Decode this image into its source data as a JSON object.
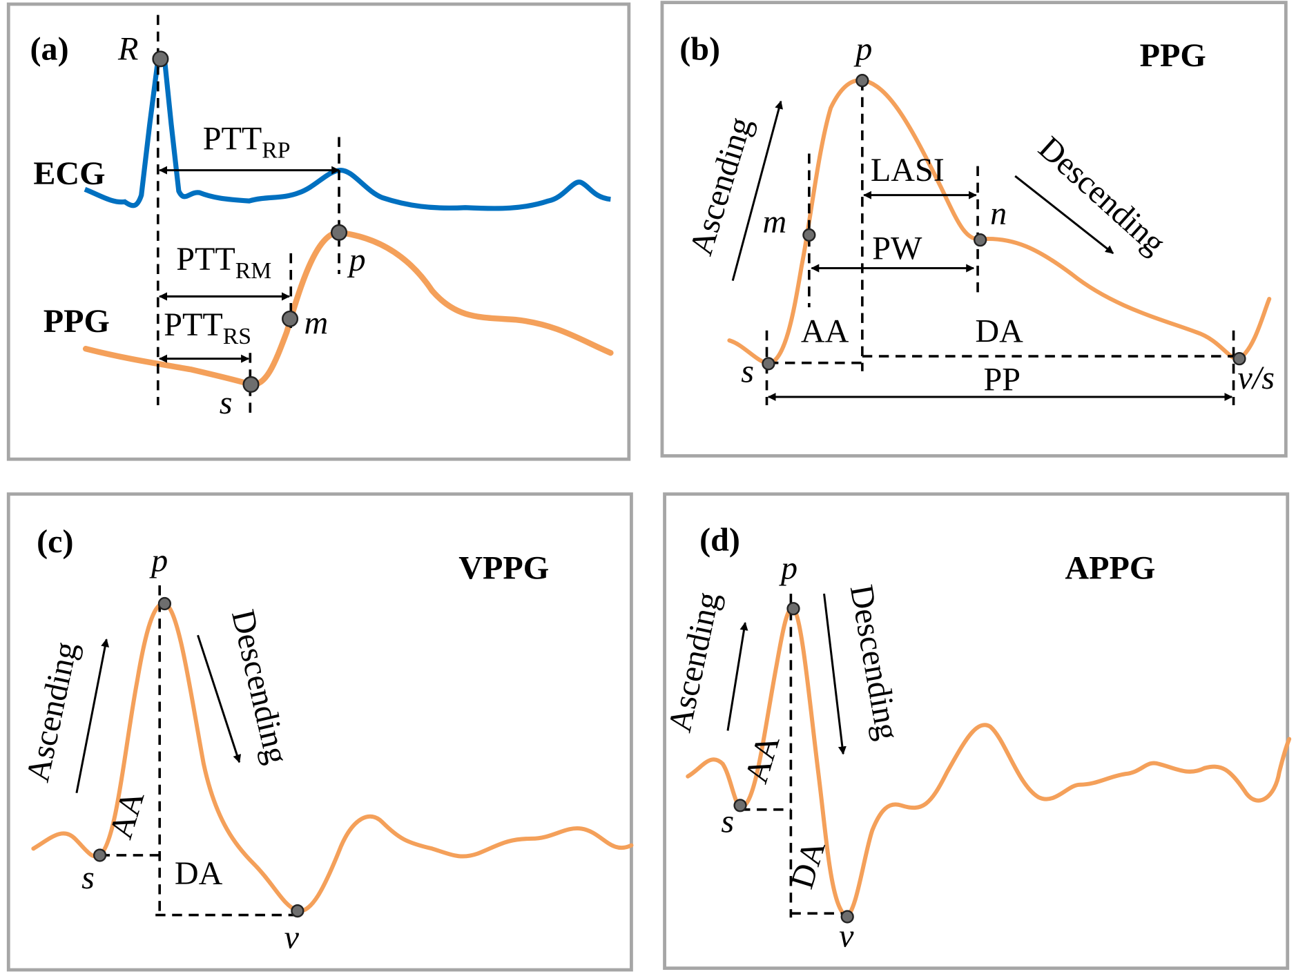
{
  "panels": [
    {
      "label": "(a)",
      "signals": [
        "ECG",
        "PPG"
      ],
      "points": [
        "R",
        "p",
        "m",
        "s"
      ],
      "intervals": [
        {
          "main": "PTT",
          "sub": "RP"
        },
        {
          "main": "PTT",
          "sub": "RM"
        },
        {
          "main": "PTT",
          "sub": "RS"
        }
      ]
    },
    {
      "label": "(b)",
      "title": "PPG",
      "points": [
        "p",
        "m",
        "n",
        "s",
        "v/s"
      ],
      "labels": [
        "Ascending",
        "Descending",
        "LASI",
        "PW",
        "AA",
        "DA",
        "PP"
      ]
    },
    {
      "label": "(c)",
      "title": "VPPG",
      "points": [
        "p",
        "s",
        "v"
      ],
      "labels": [
        "Ascending",
        "Descending",
        "AA",
        "DA"
      ]
    },
    {
      "label": "(d)",
      "title": "APPG",
      "points": [
        "p",
        "s",
        "v"
      ],
      "labels": [
        "Ascending",
        "Descending",
        "AA",
        "DA"
      ]
    }
  ]
}
